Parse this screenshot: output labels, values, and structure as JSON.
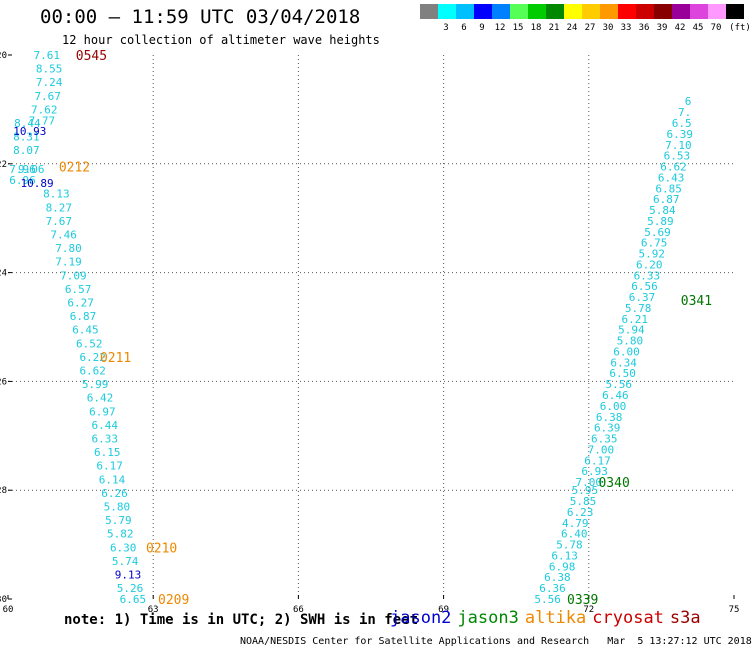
{
  "title": "00:00 – 11:59 UTC 03/04/2018",
  "subtitle": "12 hour collection of altimeter wave heights",
  "scale": {
    "colors": [
      "#808080",
      "#00ffff",
      "#00bfff",
      "#0000ff",
      "#0080ff",
      "#55ff55",
      "#00cc00",
      "#008800",
      "#ffff00",
      "#ffcc00",
      "#ff9900",
      "#ff0000",
      "#cc0000",
      "#880000",
      "#990099",
      "#dd44dd",
      "#ff99ff",
      "#000000"
    ],
    "labels": [
      "3",
      "6",
      "9",
      "12",
      "15",
      "18",
      "21",
      "24",
      "27",
      "30",
      "33",
      "36",
      "39",
      "42",
      "45",
      "70"
    ],
    "unit": "(ft)"
  },
  "axes": {
    "x_ticks": [
      "60",
      "63",
      "66",
      "69",
      "72",
      "75"
    ],
    "y_ticks": [
      "-20",
      "-22",
      "-24",
      "-26",
      "-28",
      "-30"
    ]
  },
  "chart_data": {
    "type": "scatter",
    "lon_range": [
      60,
      75
    ],
    "lat_range": [
      -30,
      -20
    ],
    "tracks": [
      {
        "satellite": "jason2",
        "color": "#1ccbdd",
        "points": [
          {
            "lon": 60.8,
            "lat": -20.0,
            "v": "7.61"
          },
          {
            "lon": 60.85,
            "lat": -20.25,
            "v": "8.55"
          },
          {
            "lon": 60.85,
            "lat": -20.5,
            "v": "7.24"
          },
          {
            "lon": 60.82,
            "lat": -20.75,
            "v": "7.67"
          },
          {
            "lon": 60.75,
            "lat": -21.0,
            "v": "7.62"
          },
          {
            "lon": 60.7,
            "lat": -21.2,
            "v": "7.77"
          },
          {
            "lon": 60.4,
            "lat": -21.25,
            "v": "8.44"
          },
          {
            "lon": 60.38,
            "lat": -21.5,
            "v": "8.31"
          },
          {
            "lon": 60.38,
            "lat": -21.75,
            "v": "8.07"
          },
          {
            "lon": 60.3,
            "lat": -22.1,
            "v": "7.96"
          },
          {
            "lon": 60.48,
            "lat": -22.1,
            "v": "9.06"
          },
          {
            "lon": 60.3,
            "lat": -22.3,
            "v": "6.96"
          },
          {
            "lon": 61.0,
            "lat": -22.55,
            "v": "8.13"
          },
          {
            "lon": 61.05,
            "lat": -22.8,
            "v": "8.27"
          },
          {
            "lon": 61.05,
            "lat": -23.05,
            "v": "7.67"
          },
          {
            "lon": 61.15,
            "lat": -23.3,
            "v": "7.46"
          },
          {
            "lon": 61.25,
            "lat": -23.55,
            "v": "7.80"
          },
          {
            "lon": 61.25,
            "lat": -23.8,
            "v": "7.19"
          },
          {
            "lon": 61.35,
            "lat": -24.05,
            "v": "7.09"
          },
          {
            "lon": 61.45,
            "lat": -24.3,
            "v": "6.57"
          },
          {
            "lon": 61.5,
            "lat": -24.55,
            "v": "6.27"
          },
          {
            "lon": 61.55,
            "lat": -24.8,
            "v": "6.87"
          },
          {
            "lon": 61.6,
            "lat": -25.05,
            "v": "6.45"
          },
          {
            "lon": 61.68,
            "lat": -25.3,
            "v": "6.52"
          },
          {
            "lon": 61.75,
            "lat": -25.55,
            "v": "6.22"
          },
          {
            "lon": 61.75,
            "lat": -25.8,
            "v": "6.62"
          },
          {
            "lon": 61.8,
            "lat": -26.05,
            "v": "5.99"
          },
          {
            "lon": 61.9,
            "lat": -26.3,
            "v": "6.42"
          },
          {
            "lon": 61.95,
            "lat": -26.55,
            "v": "6.97"
          },
          {
            "lon": 62.0,
            "lat": -26.8,
            "v": "6.44"
          },
          {
            "lon": 62.0,
            "lat": -27.05,
            "v": "6.33"
          },
          {
            "lon": 62.05,
            "lat": -27.3,
            "v": "6.15"
          },
          {
            "lon": 62.1,
            "lat": -27.55,
            "v": "6.17"
          },
          {
            "lon": 62.15,
            "lat": -27.8,
            "v": "6.14"
          },
          {
            "lon": 62.2,
            "lat": -28.05,
            "v": "6.26"
          },
          {
            "lon": 62.25,
            "lat": -28.3,
            "v": "5.80"
          },
          {
            "lon": 62.28,
            "lat": -28.55,
            "v": "5.79"
          },
          {
            "lon": 62.32,
            "lat": -28.8,
            "v": "5.82"
          },
          {
            "lon": 62.38,
            "lat": -29.05,
            "v": "6.30"
          },
          {
            "lon": 62.42,
            "lat": -29.3,
            "v": "5.74"
          },
          {
            "lon": 62.52,
            "lat": -29.8,
            "v": "5.26"
          },
          {
            "lon": 62.58,
            "lat": -30.0,
            "v": "6.65"
          }
        ]
      },
      {
        "satellite": "jason2-high",
        "color": "#0000cc",
        "points": [
          {
            "lon": 60.45,
            "lat": -21.4,
            "v": "10.93"
          },
          {
            "lon": 60.6,
            "lat": -22.35,
            "v": "10.89"
          },
          {
            "lon": 62.48,
            "lat": -29.55,
            "v": "9.13"
          }
        ]
      },
      {
        "satellite": "jason3",
        "color": "#1ccbdd",
        "points": [
          {
            "lon": 71.15,
            "lat": -30.0,
            "v": "5.56"
          },
          {
            "lon": 71.25,
            "lat": -29.8,
            "v": "6.36"
          },
          {
            "lon": 71.35,
            "lat": -29.6,
            "v": "6.38"
          },
          {
            "lon": 71.45,
            "lat": -29.4,
            "v": "6.98"
          },
          {
            "lon": 71.5,
            "lat": -29.2,
            "v": "6.13"
          },
          {
            "lon": 71.6,
            "lat": -29.0,
            "v": "5.78"
          },
          {
            "lon": 71.7,
            "lat": -28.8,
            "v": "6.40"
          },
          {
            "lon": 71.72,
            "lat": -28.6,
            "v": "4.79"
          },
          {
            "lon": 71.82,
            "lat": -28.4,
            "v": "6.23"
          },
          {
            "lon": 71.88,
            "lat": -28.2,
            "v": "5.85"
          },
          {
            "lon": 71.92,
            "lat": -28.0,
            "v": "5.95"
          },
          {
            "lon": 72.0,
            "lat": -27.85,
            "v": "7.00"
          },
          {
            "lon": 72.12,
            "lat": -27.65,
            "v": "6.93"
          },
          {
            "lon": 72.18,
            "lat": -27.45,
            "v": "6.17"
          },
          {
            "lon": 72.25,
            "lat": -27.25,
            "v": "7.00"
          },
          {
            "lon": 72.32,
            "lat": -27.05,
            "v": "6.35"
          },
          {
            "lon": 72.38,
            "lat": -26.85,
            "v": "6.39"
          },
          {
            "lon": 72.42,
            "lat": -26.65,
            "v": "6.38"
          },
          {
            "lon": 72.5,
            "lat": -26.45,
            "v": "6.00"
          },
          {
            "lon": 72.55,
            "lat": -26.25,
            "v": "6.46"
          },
          {
            "lon": 72.62,
            "lat": -26.05,
            "v": "5.56"
          },
          {
            "lon": 72.7,
            "lat": -25.85,
            "v": "6.50"
          },
          {
            "lon": 72.72,
            "lat": -25.65,
            "v": "6.34"
          },
          {
            "lon": 72.78,
            "lat": -25.45,
            "v": "6.00"
          },
          {
            "lon": 72.85,
            "lat": -25.25,
            "v": "5.80"
          },
          {
            "lon": 72.88,
            "lat": -25.05,
            "v": "5.94"
          },
          {
            "lon": 72.95,
            "lat": -24.85,
            "v": "6.21"
          },
          {
            "lon": 73.02,
            "lat": -24.65,
            "v": "5.78"
          },
          {
            "lon": 73.1,
            "lat": -24.45,
            "v": "6.37"
          },
          {
            "lon": 73.15,
            "lat": -24.25,
            "v": "6.56"
          },
          {
            "lon": 73.2,
            "lat": -24.05,
            "v": "6.33"
          },
          {
            "lon": 73.25,
            "lat": -23.85,
            "v": "6.20"
          },
          {
            "lon": 73.3,
            "lat": -23.65,
            "v": "5.92"
          },
          {
            "lon": 73.35,
            "lat": -23.45,
            "v": "6.75"
          },
          {
            "lon": 73.42,
            "lat": -23.25,
            "v": "5.69"
          },
          {
            "lon": 73.48,
            "lat": -23.05,
            "v": "5.89"
          },
          {
            "lon": 73.52,
            "lat": -22.85,
            "v": "5.84"
          },
          {
            "lon": 73.6,
            "lat": -22.65,
            "v": "6.87"
          },
          {
            "lon": 73.65,
            "lat": -22.45,
            "v": "6.85"
          },
          {
            "lon": 73.7,
            "lat": -22.25,
            "v": "6.43"
          },
          {
            "lon": 73.75,
            "lat": -22.05,
            "v": "6.62"
          },
          {
            "lon": 73.82,
            "lat": -21.85,
            "v": "6.53"
          },
          {
            "lon": 73.85,
            "lat": -21.65,
            "v": "7.10"
          },
          {
            "lon": 73.88,
            "lat": -21.45,
            "v": "6.39"
          },
          {
            "lon": 73.92,
            "lat": -21.25,
            "v": "6.5"
          },
          {
            "lon": 73.98,
            "lat": -21.05,
            "v": "7."
          },
          {
            "lon": 74.05,
            "lat": -20.85,
            "v": "6"
          }
        ]
      }
    ],
    "time_labels": [
      {
        "lon": 61.4,
        "lat": -20.0,
        "t": "0545",
        "color": "#990000"
      },
      {
        "lon": 61.05,
        "lat": -22.05,
        "t": "0212",
        "color": "#ee8800"
      },
      {
        "lon": 61.9,
        "lat": -25.55,
        "t": "0211",
        "color": "#ee8800"
      },
      {
        "lon": 62.85,
        "lat": -29.05,
        "t": "0210",
        "color": "#ee8800"
      },
      {
        "lon": 63.1,
        "lat": -30.0,
        "t": "0209",
        "color": "#ee8800"
      },
      {
        "lon": 71.55,
        "lat": -30.0,
        "t": "0339",
        "color": "#007700"
      },
      {
        "lon": 72.2,
        "lat": -27.85,
        "t": "0340",
        "color": "#007700"
      },
      {
        "lon": 73.9,
        "lat": -24.5,
        "t": "0341",
        "color": "#007700"
      }
    ]
  },
  "note": "note: 1) Time is in UTC; 2) SWH is in feet",
  "legend": [
    {
      "name": "jason2",
      "color": "#0000cc"
    },
    {
      "name": "jason3",
      "color": "#008800"
    },
    {
      "name": "altika",
      "color": "#ee8800"
    },
    {
      "name": "cryosat",
      "color": "#cc0000"
    },
    {
      "name": "s3a",
      "color": "#990000"
    }
  ],
  "footer": "NOAA/NESDIS Center for Satellite Applications and Research   Mar  5 13:27:12 UTC 2018"
}
